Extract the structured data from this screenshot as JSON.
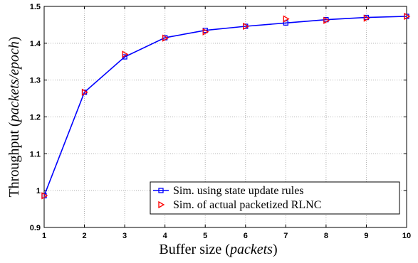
{
  "chart_data": {
    "type": "line",
    "xlabel": "Buffer size",
    "xlabel_unit": "packets",
    "ylabel": "Throughput",
    "ylabel_unit": "packets/epoch",
    "xlim": [
      1,
      10
    ],
    "ylim": [
      0.9,
      1.5
    ],
    "x_ticks": [
      "1",
      "2",
      "3",
      "4",
      "5",
      "6",
      "7",
      "8",
      "9",
      "10"
    ],
    "y_ticks": [
      "0.9",
      "1",
      "1.1",
      "1.2",
      "1.3",
      "1.4",
      "1.5"
    ],
    "grid": true,
    "legend_position": "bottom-right",
    "x": [
      1,
      2,
      3,
      4,
      5,
      6,
      7,
      8,
      9,
      10
    ],
    "series": [
      {
        "name": "Sim. using state update rules",
        "values": [
          0.986,
          1.267,
          1.363,
          1.415,
          1.435,
          1.446,
          1.455,
          1.464,
          1.47,
          1.473
        ],
        "color": "#0000ff",
        "marker": "square",
        "line": true
      },
      {
        "name": "Sim. of actual packetized RLNC",
        "values": [
          0.986,
          1.267,
          1.37,
          1.414,
          1.431,
          1.446,
          1.466,
          1.462,
          1.468,
          1.473
        ],
        "color": "#ff0000",
        "marker": "triangle-right",
        "line": false
      }
    ]
  }
}
